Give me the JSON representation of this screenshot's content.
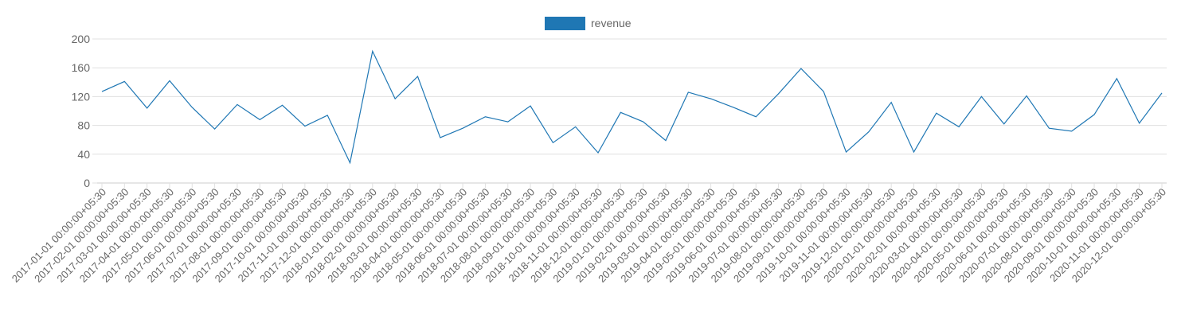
{
  "chart_data": {
    "type": "line",
    "title": "",
    "xlabel": "",
    "ylabel": "",
    "legend_position": "top-center",
    "grid": true,
    "ylim": [
      0,
      200
    ],
    "yticks": [
      0,
      40,
      80,
      120,
      160,
      200
    ],
    "x": [
      "2017-01-01 00:00:00+05:30",
      "2017-02-01 00:00:00+05:30",
      "2017-03-01 00:00:00+05:30",
      "2017-04-01 00:00:00+05:30",
      "2017-05-01 00:00:00+05:30",
      "2017-06-01 00:00:00+05:30",
      "2017-07-01 00:00:00+05:30",
      "2017-08-01 00:00:00+05:30",
      "2017-09-01 00:00:00+05:30",
      "2017-10-01 00:00:00+05:30",
      "2017-11-01 00:00:00+05:30",
      "2017-12-01 00:00:00+05:30",
      "2018-01-01 00:00:00+05:30",
      "2018-02-01 00:00:00+05:30",
      "2018-03-01 00:00:00+05:30",
      "2018-04-01 00:00:00+05:30",
      "2018-05-01 00:00:00+05:30",
      "2018-06-01 00:00:00+05:30",
      "2018-07-01 00:00:00+05:30",
      "2018-08-01 00:00:00+05:30",
      "2018-09-01 00:00:00+05:30",
      "2018-10-01 00:00:00+05:30",
      "2018-11-01 00:00:00+05:30",
      "2018-12-01 00:00:00+05:30",
      "2019-01-01 00:00:00+05:30",
      "2019-02-01 00:00:00+05:30",
      "2019-03-01 00:00:00+05:30",
      "2019-04-01 00:00:00+05:30",
      "2019-05-01 00:00:00+05:30",
      "2019-06-01 00:00:00+05:30",
      "2019-07-01 00:00:00+05:30",
      "2019-08-01 00:00:00+05:30",
      "2019-09-01 00:00:00+05:30",
      "2019-10-01 00:00:00+05:30",
      "2019-11-01 00:00:00+05:30",
      "2019-12-01 00:00:00+05:30",
      "2020-01-01 00:00:00+05:30",
      "2020-02-01 00:00:00+05:30",
      "2020-03-01 00:00:00+05:30",
      "2020-04-01 00:00:00+05:30",
      "2020-05-01 00:00:00+05:30",
      "2020-06-01 00:00:00+05:30",
      "2020-07-01 00:00:00+05:30",
      "2020-08-01 00:00:00+05:30",
      "2020-09-01 00:00:00+05:30",
      "2020-10-01 00:00:00+05:30",
      "2020-11-01 00:00:00+05:30",
      "2020-12-01 00:00:00+05:30"
    ],
    "series": [
      {
        "name": "revenue",
        "color": "#1f77b4",
        "values": [
          127,
          141,
          104,
          142,
          105,
          75,
          109,
          88,
          108,
          79,
          94,
          28,
          183,
          117,
          148,
          63,
          76,
          92,
          85,
          107,
          56,
          78,
          42,
          98,
          85,
          59,
          126,
          117,
          105,
          92,
          124,
          159,
          127,
          43,
          71,
          112,
          43,
          97,
          78,
          120,
          82,
          121,
          76,
          72,
          95,
          145,
          83,
          125
        ]
      }
    ]
  }
}
